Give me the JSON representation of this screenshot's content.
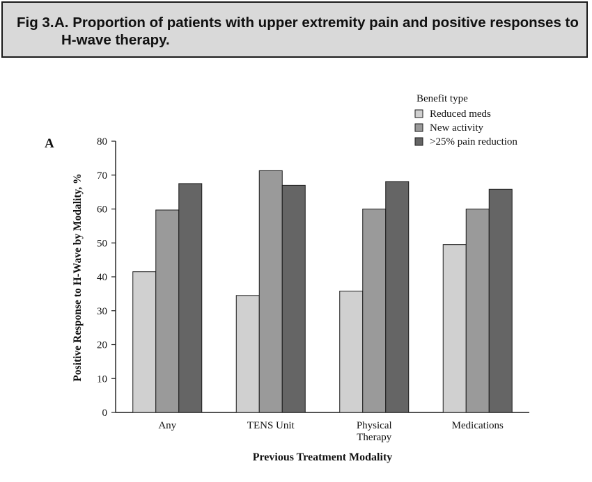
{
  "caption": {
    "figure_label": "Fig 3.",
    "title_line1": "A. Proportion of patients with upper extremity pain and positive responses to",
    "title_line2": "H-wave therapy."
  },
  "panel_label": "A",
  "colors": {
    "reduced_meds": "#d0d0d0",
    "new_activity": "#9a9a9a",
    "pain_reduction": "#656565",
    "stroke": "#1a1a1a"
  },
  "chart_data": {
    "type": "bar",
    "title": "",
    "xlabel": "Previous Treatment Modality",
    "ylabel": "Positive Response to H-Wave by Modality, %",
    "ylim": [
      0,
      80
    ],
    "yticks": [
      0,
      10,
      20,
      30,
      40,
      50,
      60,
      70,
      80
    ],
    "categories": [
      [
        "Any"
      ],
      [
        "TENS Unit"
      ],
      [
        "Physical",
        "Therapy"
      ],
      [
        "Medications"
      ]
    ],
    "legend_title": "Benefit type",
    "legend_position": "top-right",
    "grid": false,
    "series": [
      {
        "name": "Reduced meds",
        "color": "#d0d0d0",
        "values": [
          41.5,
          34.5,
          35.8,
          49.5
        ]
      },
      {
        "name": "New activity",
        "color": "#9a9a9a",
        "values": [
          59.7,
          71.3,
          60.0,
          60.0
        ]
      },
      {
        "name": ">25% pain reduction",
        "color": "#656565",
        "values": [
          67.5,
          67.0,
          68.1,
          65.8
        ]
      }
    ]
  }
}
